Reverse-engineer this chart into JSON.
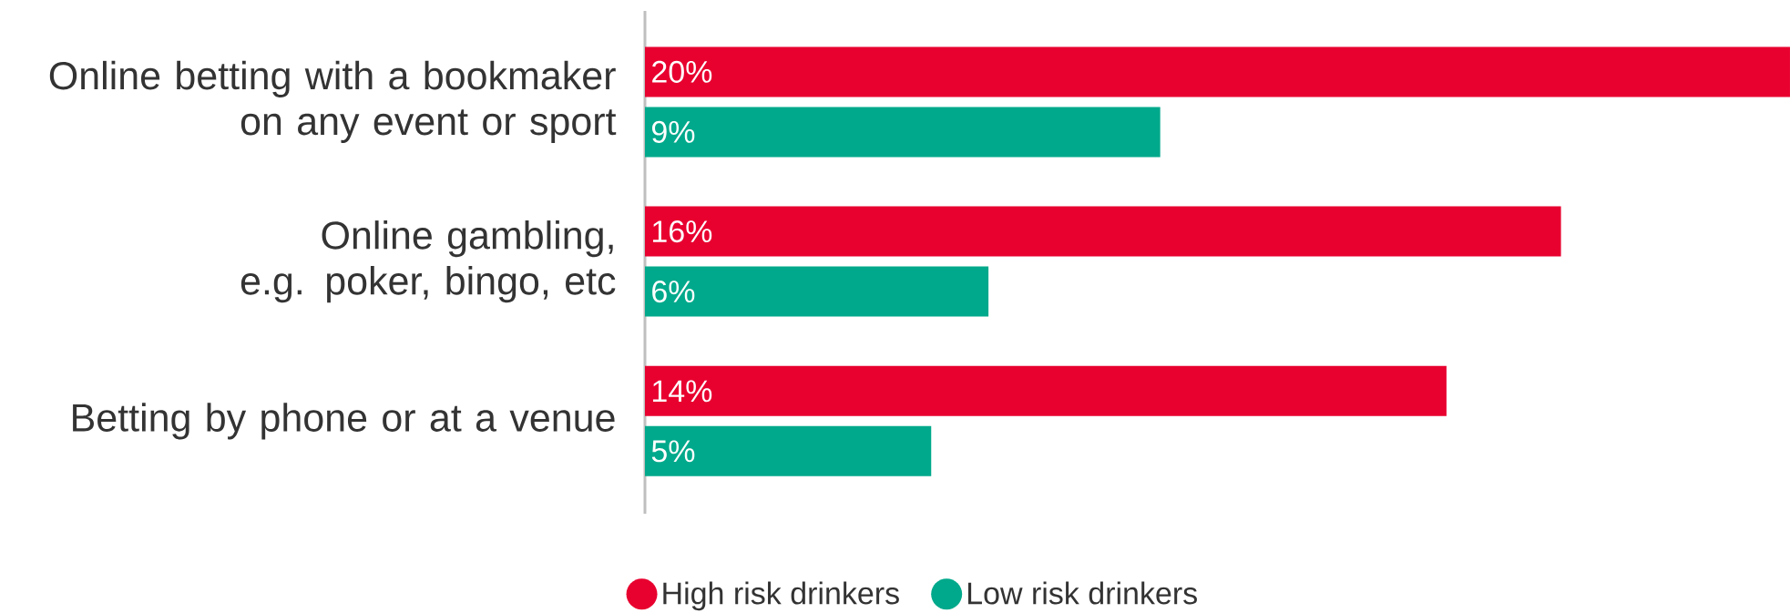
{
  "chart_data": {
    "type": "bar",
    "orientation": "horizontal",
    "categories": [
      "Online betting with a bookmaker on any event or sport",
      "Online gambling, e.g. poker, bingo, etc",
      "Betting by phone or at a venue"
    ],
    "series": [
      {
        "name": "High risk drinkers",
        "color": "#e8002f",
        "values": [
          20,
          16,
          14
        ],
        "value_labels": [
          "20%",
          "16%",
          "14%"
        ]
      },
      {
        "name": "Low risk drinkers",
        "color": "#00a98b",
        "values": [
          9,
          6,
          5
        ],
        "value_labels": [
          "9%",
          "6%",
          "5%"
        ]
      }
    ],
    "xlim": [
      0,
      20
    ],
    "legend": "bottom"
  }
}
